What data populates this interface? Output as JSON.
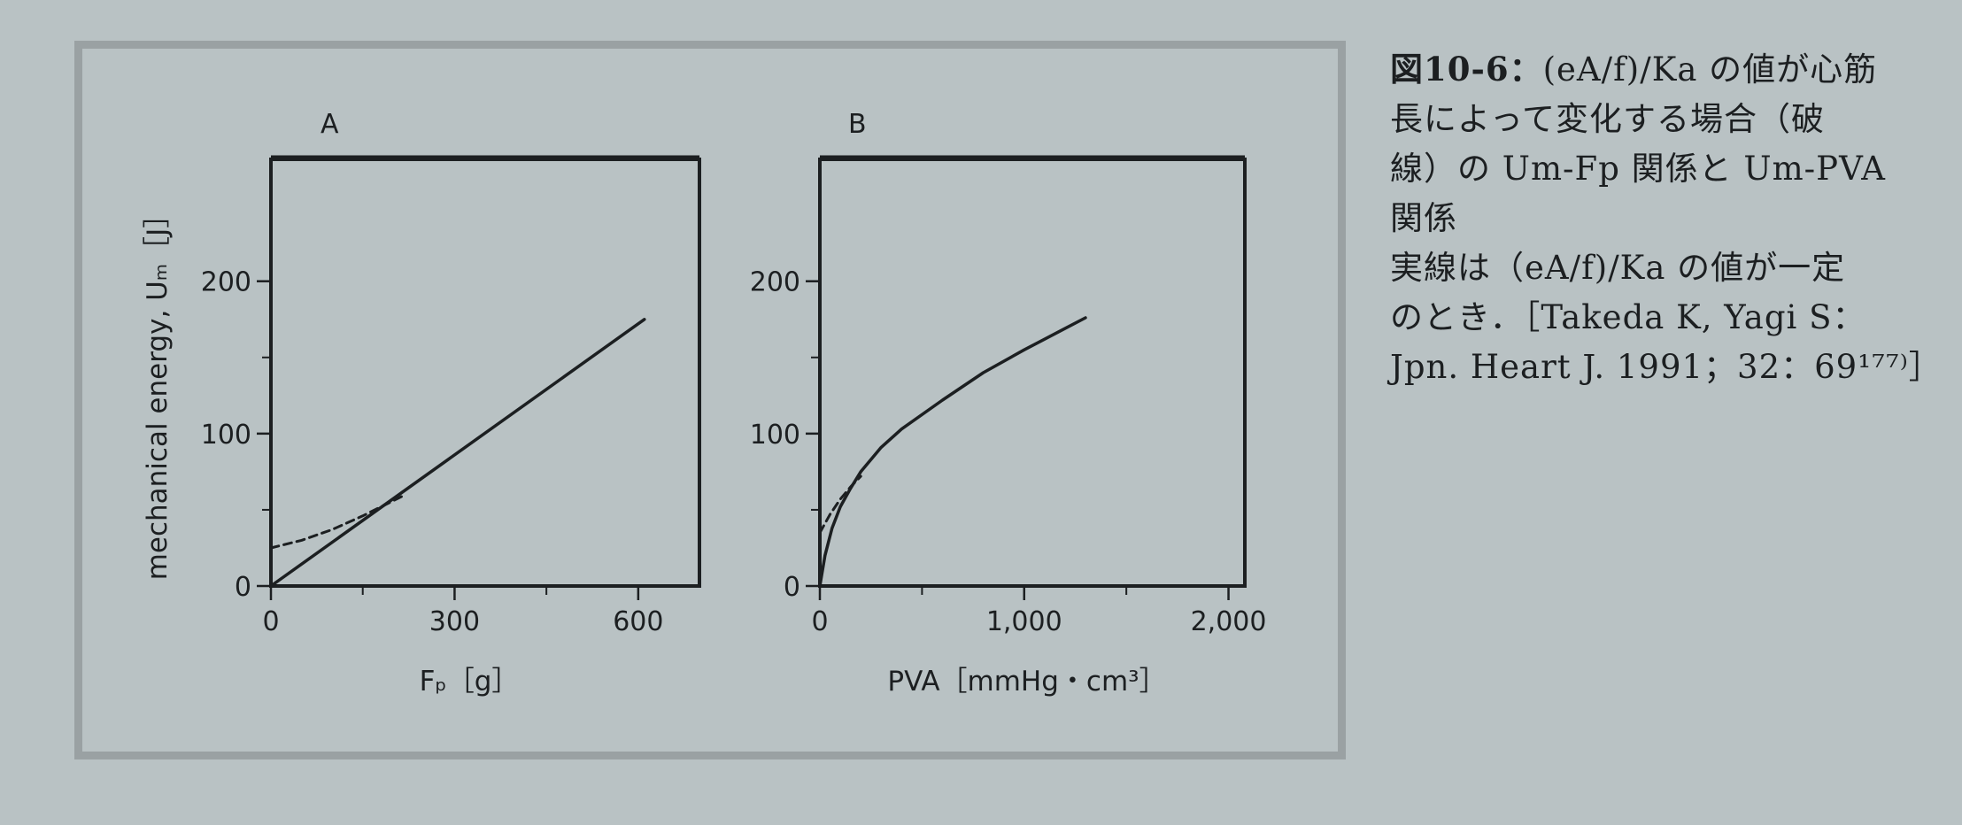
{
  "caption": {
    "label": "図10-6：",
    "lines": [
      "(eA/f)/Ka の値が心筋",
      "長によって変化する場合（破",
      "線）の Um-Fp 関係と Um-PVA",
      "関係"
    ],
    "note_lines": [
      "実線は（eA/f)/Ka の値が一定",
      "のとき．［Takeda K, Yagi S：",
      "Jpn. Heart J. 1991；32：69¹⁷⁷⁾］"
    ]
  },
  "colors": {
    "ink": "#1c1f21",
    "paper": "#b9c2c4"
  },
  "chart_data": [
    {
      "type": "line",
      "panel_label": "A",
      "xlabel": "Fₚ［g］",
      "ylabel": "mechanical energy, Uₘ［J］",
      "xlim": [
        0,
        700
      ],
      "ylim": [
        0,
        280
      ],
      "xticks": [
        0,
        300,
        600
      ],
      "xtick_labels": [
        "0",
        "300",
        "600"
      ],
      "xminor_ticks": [
        150,
        450
      ],
      "yticks": [
        0,
        100,
        200
      ],
      "ytick_labels": [
        "0",
        "100",
        "200"
      ],
      "yminor_ticks": [
        50,
        150
      ],
      "series": [
        {
          "style": "solid",
          "x": [
            0,
            610
          ],
          "y": [
            0,
            175
          ]
        },
        {
          "style": "dashed",
          "x": [
            0,
            50,
            100,
            150,
            200,
            220
          ],
          "y": [
            25,
            30,
            37,
            46,
            56,
            60
          ]
        }
      ]
    },
    {
      "type": "line",
      "panel_label": "B",
      "xlabel": "PVA［mmHg・cm³］",
      "ylabel": "",
      "xlim": [
        0,
        2080
      ],
      "ylim": [
        0,
        280
      ],
      "xticks": [
        0,
        1000,
        2000
      ],
      "xtick_labels": [
        "0",
        "1,000",
        "2,000"
      ],
      "xminor_ticks": [
        500,
        1500
      ],
      "yticks": [
        0,
        100,
        200
      ],
      "ytick_labels": [
        "0",
        "100",
        "200"
      ],
      "yminor_ticks": [
        50,
        150
      ],
      "series": [
        {
          "style": "solid",
          "x": [
            0,
            25,
            60,
            100,
            150,
            200,
            300,
            400,
            600,
            800,
            1000,
            1200,
            1300
          ],
          "y": [
            0,
            20,
            38,
            52,
            64,
            75,
            91,
            103,
            122,
            140,
            155,
            169,
            176
          ]
        },
        {
          "style": "dashed",
          "x": [
            0,
            50,
            100,
            150,
            200
          ],
          "y": [
            35,
            47,
            57,
            65,
            72
          ]
        }
      ]
    }
  ]
}
